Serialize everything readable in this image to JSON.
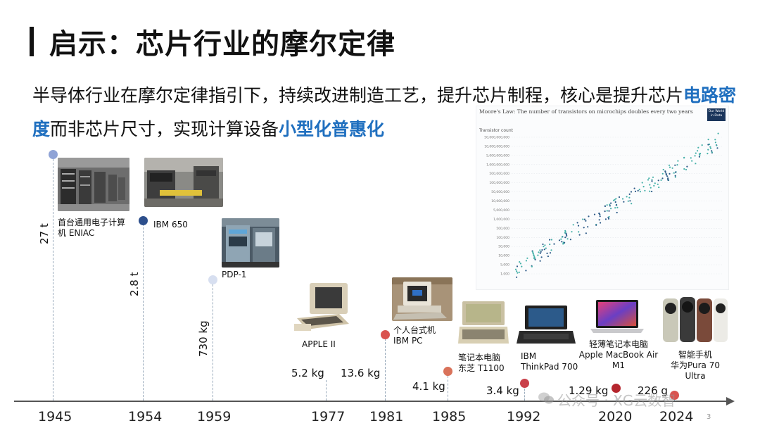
{
  "title": "启示：芯片行业的摩尔定律",
  "subtitle": {
    "part1": "半导体行业在摩尔定律指引下，持续改进制造工艺，提升芯片制程，核心是提升芯片",
    "hl1": "电路密度",
    "part2": "而非芯片尺寸，实现计算设备",
    "hl2": "小型化普惠化"
  },
  "chart": {
    "title": "Moore's Law: The number of transistors on microchips doubles every two years",
    "y_label": "Transistor count",
    "badge": "Our World in Data",
    "y_ticks": [
      "50,000,000,000",
      "10,000,000,000",
      "5,000,000,000",
      "1,000,000,000",
      "500,000,000",
      "100,000,000",
      "50,000,000",
      "10,000,000",
      "5,000,000",
      "1,000,000",
      "500,000",
      "100,000",
      "50,000",
      "10,000",
      "5,000",
      "1,000"
    ]
  },
  "timeline": {
    "years": [
      "1945",
      "1954",
      "1959",
      "1977",
      "1981",
      "1985",
      "1992",
      "2020",
      "2024"
    ],
    "events": [
      {
        "label": "首台通用电子计算机 ENIAC",
        "weight": "27 t",
        "color": "#8fa3d6"
      },
      {
        "label": "IBM 650",
        "weight": "2.8 t",
        "color": "#2d4f8c"
      },
      {
        "label": "PDP-1",
        "weight": "730 kg",
        "color": "#d7dff0"
      },
      {
        "label": "APPLE II",
        "weight": "5.2 kg"
      },
      {
        "label1": "个人台式机",
        "label2": "IBM PC",
        "weight": "13.6 kg",
        "color": "#d9534f"
      },
      {
        "label1": "笔记本电脑",
        "label2": "东芝 T1100",
        "weight": "4.1 kg",
        "color": "#d9725a"
      },
      {
        "label1": "IBM",
        "label2": "ThinkPad 700",
        "weight": "3.4 kg",
        "color": "#c9404a"
      },
      {
        "label1": "轻薄笔记本电脑",
        "label2": "Apple MacBook Air",
        "label3": "M1",
        "weight": "1.29 kg",
        "color": "#b5262e"
      },
      {
        "label1": "智能手机",
        "label2": "华为Pura 70",
        "label3": "Ultra",
        "weight": "226 g",
        "color": "#d9534f"
      }
    ]
  },
  "page_number": "3",
  "watermark": "公众号 · XG云数智"
}
